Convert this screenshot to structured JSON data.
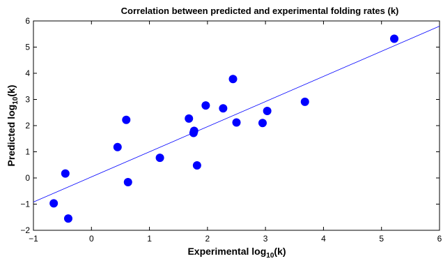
{
  "chart_data": {
    "type": "scatter",
    "title": "Correlation between predicted and experimental folding rates (k)",
    "xlabel": {
      "main": "Experimental log",
      "sub": "10",
      "suffix": "(k)"
    },
    "ylabel": {
      "main": "Predicted log",
      "sub": "10",
      "suffix": "(k)"
    },
    "xlim": [
      -1,
      6
    ],
    "ylim": [
      -2,
      6
    ],
    "xticks": [
      -1,
      0,
      1,
      2,
      3,
      4,
      5,
      6
    ],
    "yticks": [
      -2,
      -1,
      0,
      1,
      2,
      3,
      4,
      5,
      6
    ],
    "grid": false,
    "series": [
      {
        "marker": "filled-circle",
        "color": "#0000ff",
        "x": [
          -0.65,
          -0.45,
          -0.4,
          0.45,
          0.6,
          0.63,
          1.18,
          1.68,
          1.76,
          1.77,
          1.82,
          1.97,
          2.27,
          2.44,
          2.5,
          2.95,
          3.03,
          3.68,
          5.22
        ],
        "y": [
          -0.97,
          0.17,
          -1.55,
          1.18,
          2.22,
          -0.16,
          0.77,
          2.27,
          1.72,
          1.8,
          0.48,
          2.77,
          2.66,
          3.78,
          2.12,
          2.1,
          2.56,
          2.91,
          5.32
        ]
      }
    ],
    "fit_line": {
      "color": "#0000ff",
      "x": [
        -1,
        6
      ],
      "y": [
        -0.92,
        5.8
      ]
    }
  }
}
